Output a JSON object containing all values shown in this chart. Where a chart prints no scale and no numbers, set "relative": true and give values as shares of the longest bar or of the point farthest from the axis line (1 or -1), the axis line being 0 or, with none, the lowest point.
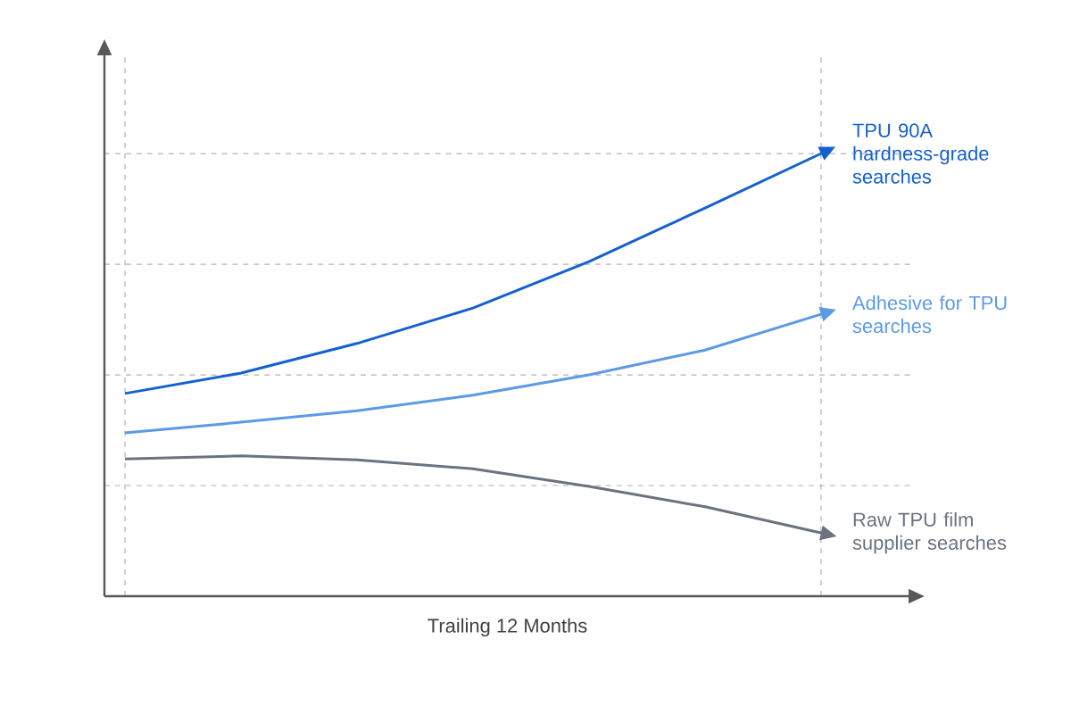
{
  "chart_data": {
    "type": "line",
    "relative": true,
    "xlabel": "Trailing 12 Months",
    "categories": [
      null,
      null,
      null,
      null,
      null,
      null,
      null
    ],
    "grid": true,
    "legend": false,
    "tick_labels": false,
    "marker": "none",
    "line_style": "solid",
    "series": [
      {
        "name": "TPU 90A hardness-grade searches",
        "color": "#1560d0",
        "values": [
          0.458,
          0.504,
          0.571,
          0.651,
          0.756,
          0.877,
          1
        ]
      },
      {
        "name": "Adhesive for TPU searches",
        "color": "#5a9ae6",
        "values": [
          0.369,
          0.393,
          0.419,
          0.454,
          0.5,
          0.556,
          0.637
        ]
      },
      {
        "name": "Raw TPU film supplier searches",
        "color": "#6b7280",
        "values": [
          0.31,
          0.317,
          0.308,
          0.288,
          0.248,
          0.202,
          0.143
        ]
      }
    ]
  }
}
